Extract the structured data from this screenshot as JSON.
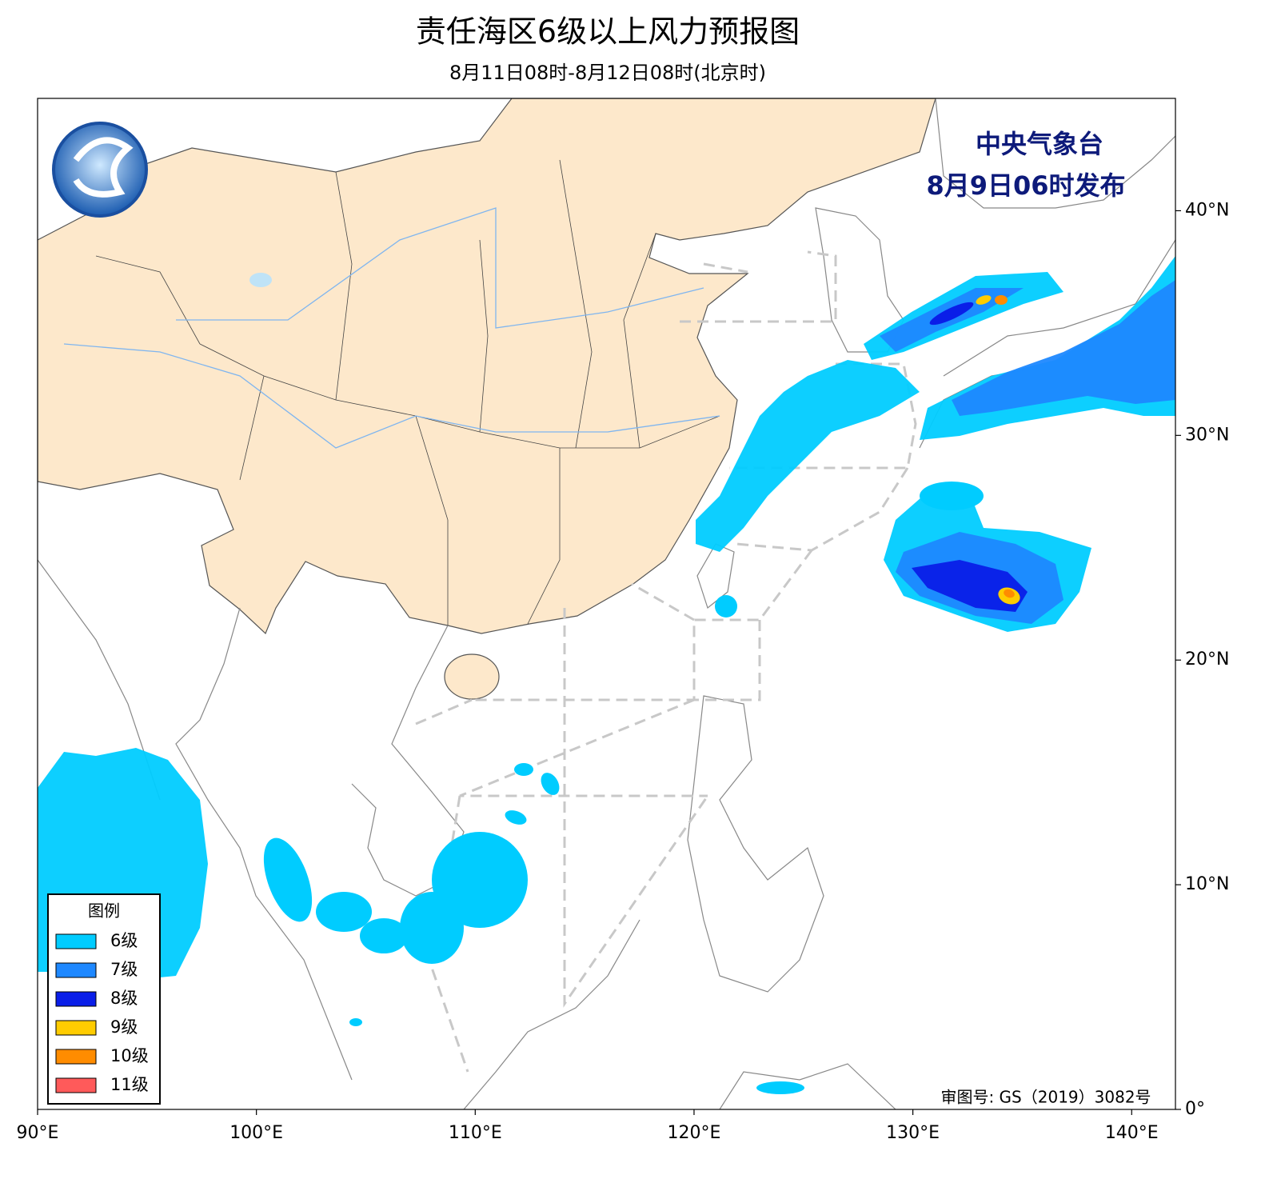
{
  "map": {
    "title": "责任海区6级以上风力预报图",
    "subtitle": "8月11日08时-8月12日08时(北京时)",
    "issuer": "中央气象台",
    "issued": "8月9日06时发布",
    "review_number": "审图号: GS（2019）3082号",
    "xlim": [
      90,
      142
    ],
    "ylim": [
      0,
      45
    ],
    "xticks": [
      {
        "value": 90,
        "label": "90°E"
      },
      {
        "value": 100,
        "label": "100°E"
      },
      {
        "value": 110,
        "label": "110°E"
      },
      {
        "value": 120,
        "label": "120°E"
      },
      {
        "value": 130,
        "label": "130°E"
      },
      {
        "value": 140,
        "label": "140°E"
      }
    ],
    "yticks": [
      {
        "value": 0,
        "label": "0°"
      },
      {
        "value": 10,
        "label": "10°N"
      },
      {
        "value": 20,
        "label": "20°N"
      },
      {
        "value": 30,
        "label": "30°N"
      },
      {
        "value": 40,
        "label": "40°N"
      }
    ],
    "legend": {
      "title": "图例",
      "items": [
        {
          "name": "6级",
          "color": "#00ccff"
        },
        {
          "name": "7级",
          "color": "#1e88ff"
        },
        {
          "name": "8级",
          "color": "#0a1ee8"
        },
        {
          "name": "9级",
          "color": "#ffcc00"
        },
        {
          "name": "10级",
          "color": "#ff8c00"
        },
        {
          "name": "11级",
          "color": "#ff5a5a"
        }
      ]
    }
  }
}
